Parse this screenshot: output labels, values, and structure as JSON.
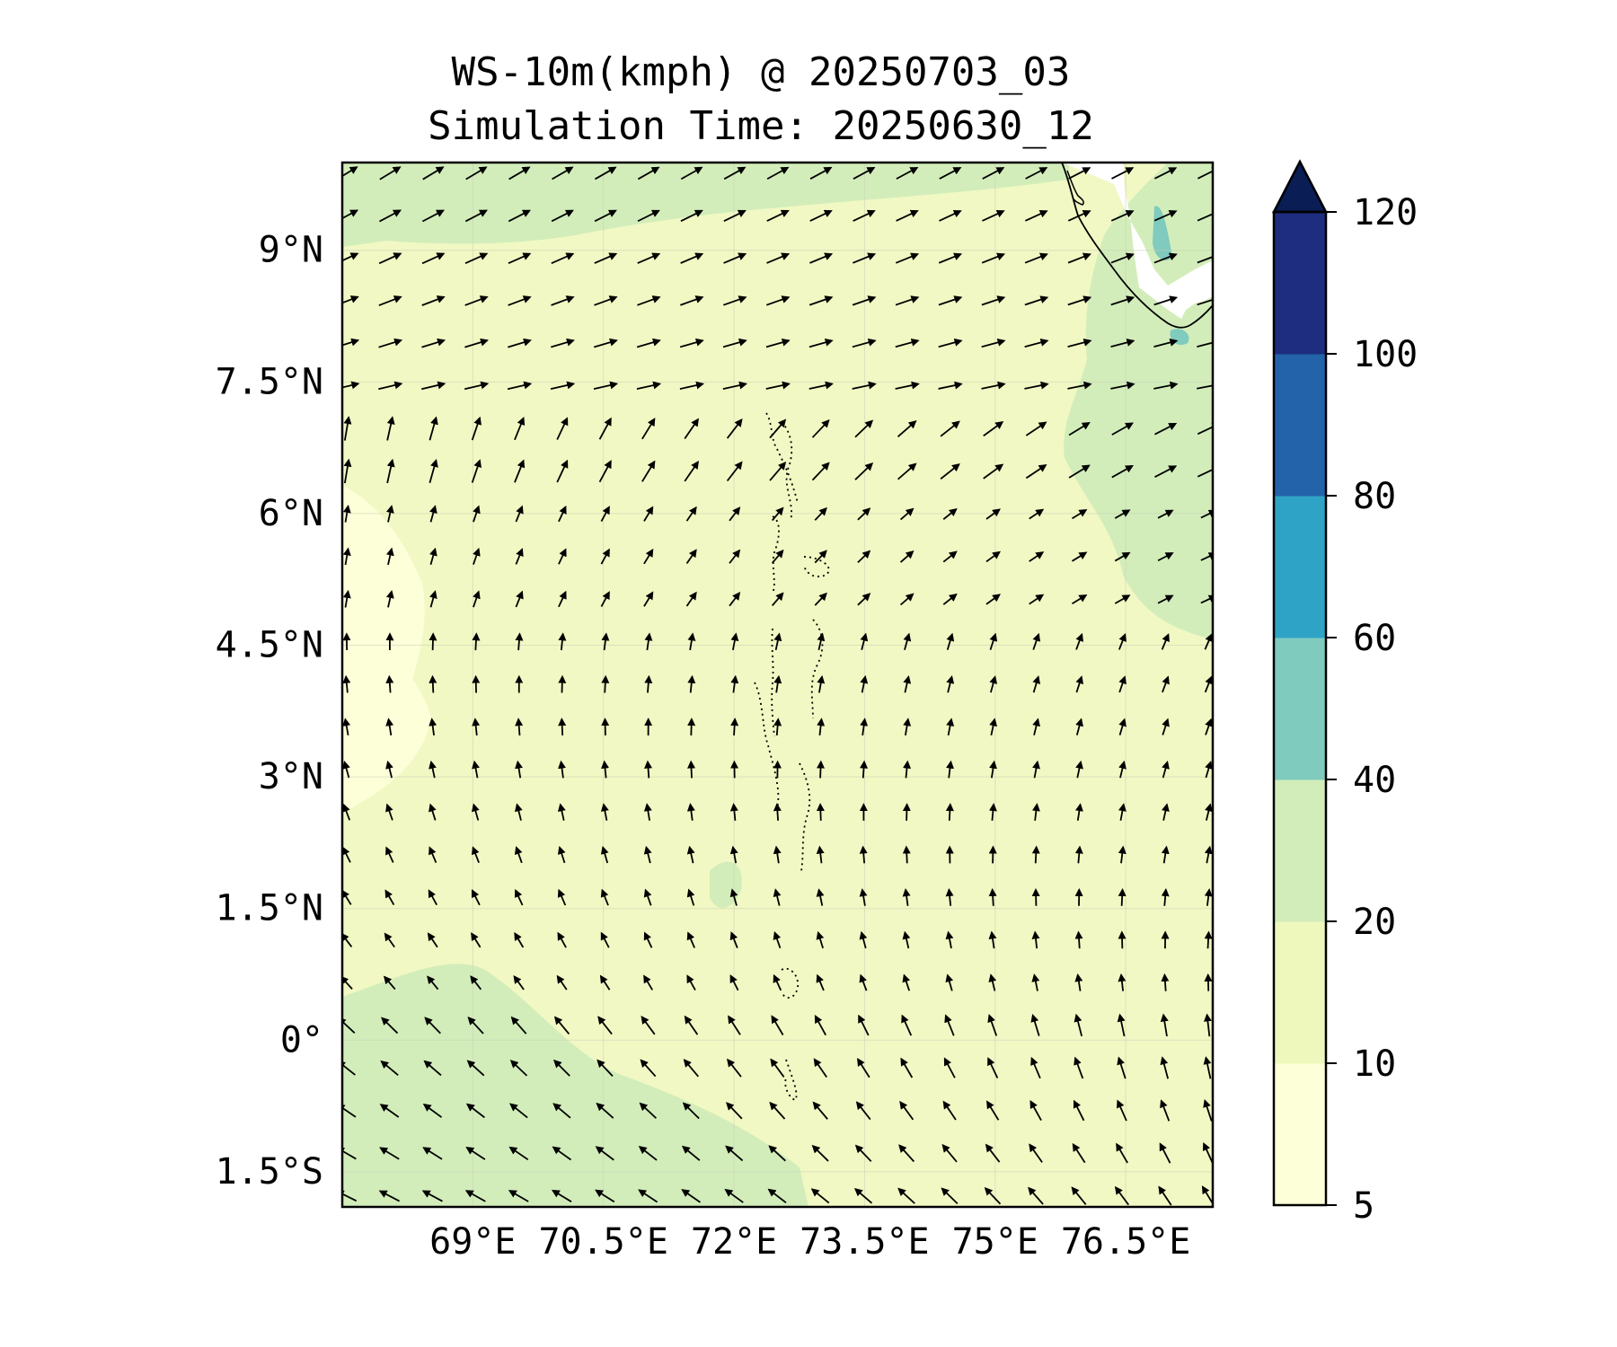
{
  "title": {
    "line1": "WS-10m(kmph) @ 20250703_03",
    "line2": "Simulation Time: 20250630_12"
  },
  "map": {
    "lon_range": [
      67.5,
      77.5
    ],
    "lat_range": [
      -1.9,
      10.0
    ],
    "lon_ticks": [
      {
        "value": 69.0,
        "label": "69°E"
      },
      {
        "value": 70.5,
        "label": "70.5°E"
      },
      {
        "value": 72.0,
        "label": "72°E"
      },
      {
        "value": 73.5,
        "label": "73.5°E"
      },
      {
        "value": 75.0,
        "label": "75°E"
      },
      {
        "value": 76.5,
        "label": "76.5°E"
      }
    ],
    "lat_ticks": [
      {
        "value": 9.0,
        "label": "9°N"
      },
      {
        "value": 7.5,
        "label": "7.5°N"
      },
      {
        "value": 6.0,
        "label": "6°N"
      },
      {
        "value": 4.5,
        "label": "4.5°N"
      },
      {
        "value": 3.0,
        "label": "3°N"
      },
      {
        "value": 1.5,
        "label": "1.5°N"
      },
      {
        "value": 0.0,
        "label": "0°"
      },
      {
        "value": -1.5,
        "label": "1.5°S"
      }
    ],
    "gridlines": true,
    "background_color": "#f1f8c3"
  },
  "colorbar": {
    "bins": [
      {
        "from": 5,
        "to": 10,
        "color": "#fdffd8"
      },
      {
        "from": 10,
        "to": 20,
        "color": "#eef8bd"
      },
      {
        "from": 20,
        "to": 40,
        "color": "#d2edba"
      },
      {
        "from": 40,
        "to": 60,
        "color": "#7fcbbe"
      },
      {
        "from": 60,
        "to": 80,
        "color": "#2fa3c6"
      },
      {
        "from": 80,
        "to": 100,
        "color": "#2363a9"
      },
      {
        "from": 100,
        "to": 120,
        "color": "#1e2d7f"
      }
    ],
    "extend_color": "#0a1d55",
    "tick_labels": [
      "5",
      "10",
      "20",
      "40",
      "60",
      "80",
      "100",
      "120"
    ]
  }
}
